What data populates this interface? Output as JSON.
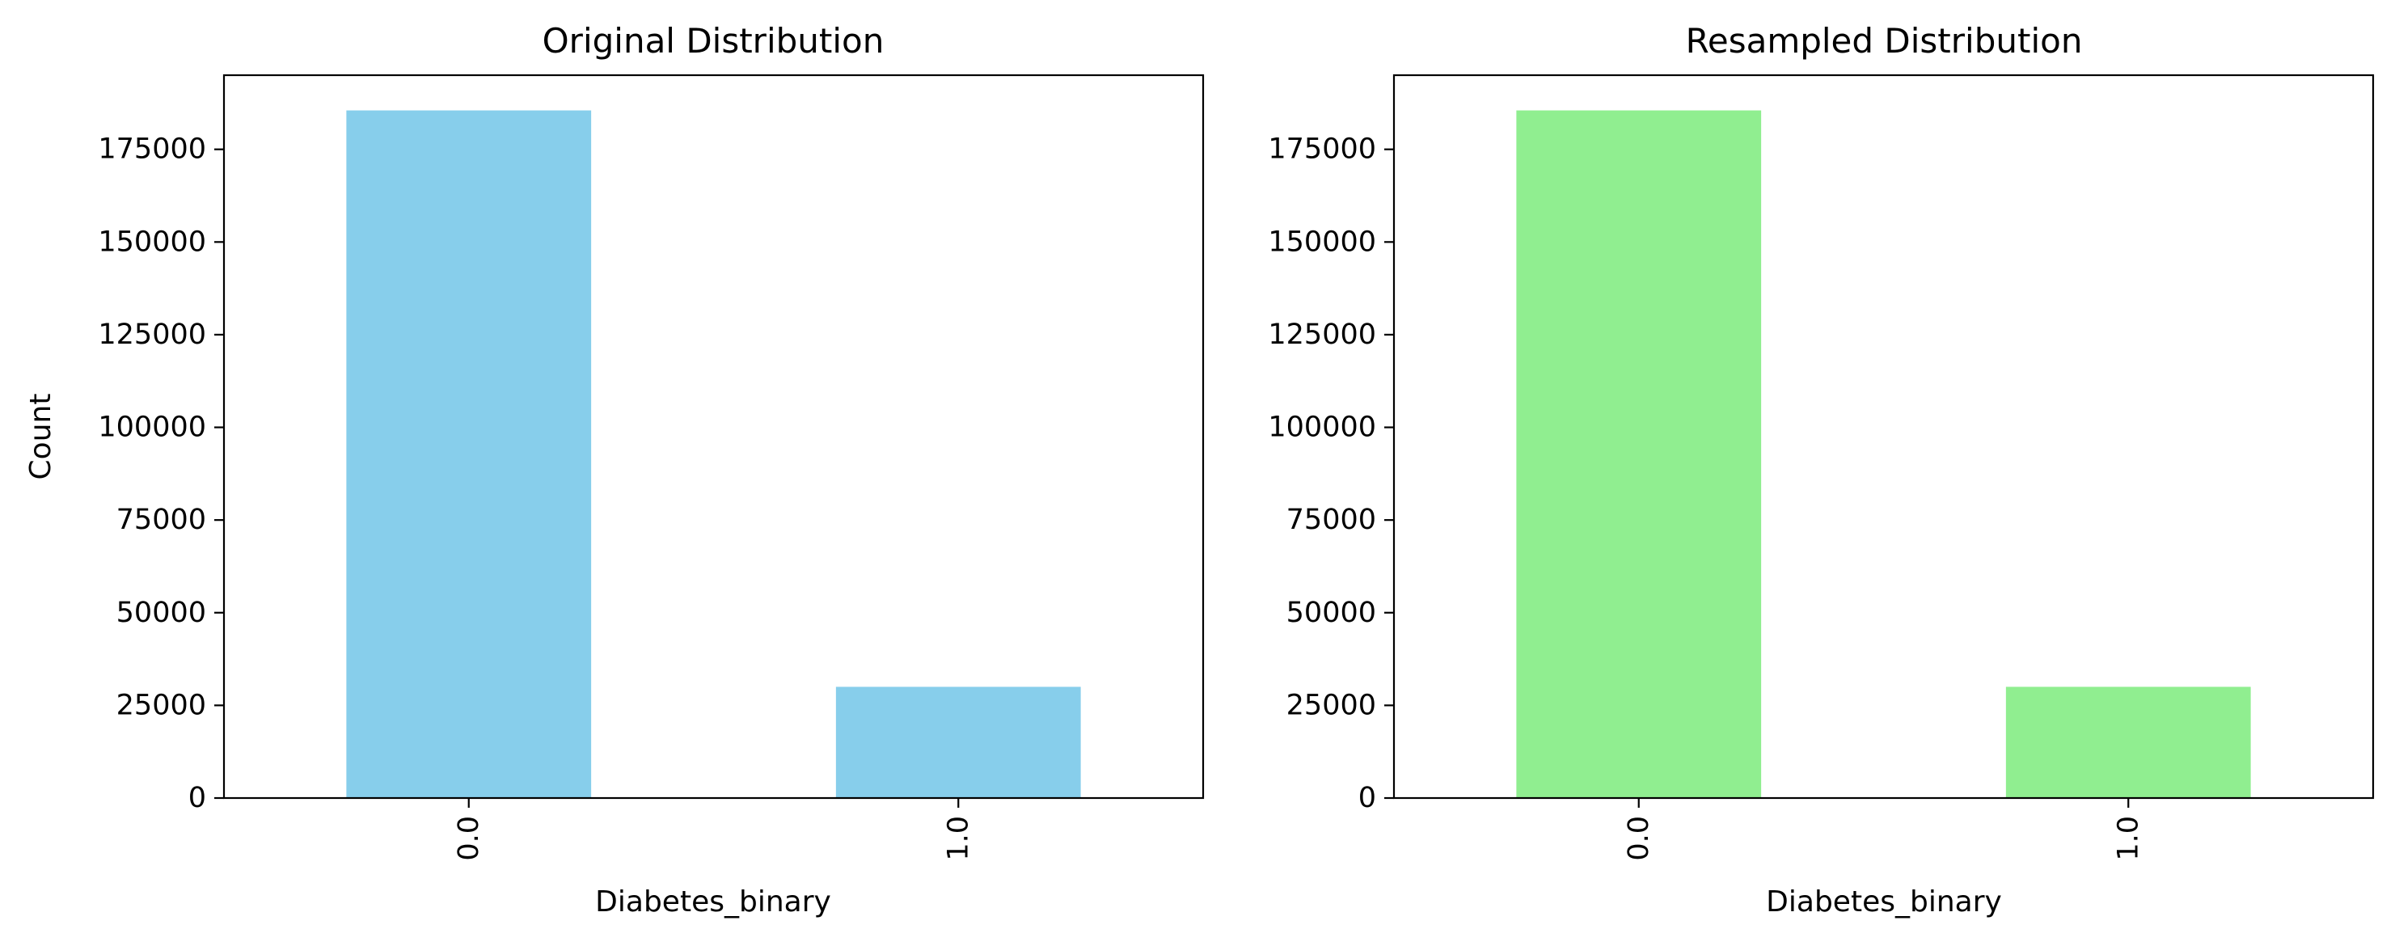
{
  "chart_data": [
    {
      "type": "bar",
      "title": "Original Distribution",
      "xlabel": "Diabetes_binary",
      "ylabel": "Count",
      "categories": [
        "0.0",
        "1.0"
      ],
      "values": [
        185500,
        30000
      ],
      "ylim": [
        0,
        195000
      ],
      "yticks": [
        0,
        25000,
        50000,
        75000,
        100000,
        125000,
        150000,
        175000
      ],
      "color": "#87CEEB",
      "grid": false
    },
    {
      "type": "bar",
      "title": "Resampled Distribution",
      "xlabel": "Diabetes_binary",
      "ylabel": "",
      "categories": [
        "0.0",
        "1.0"
      ],
      "values": [
        185500,
        30000
      ],
      "ylim": [
        0,
        195000
      ],
      "yticks": [
        0,
        25000,
        50000,
        75000,
        100000,
        125000,
        150000,
        175000
      ],
      "color": "#90EE90",
      "grid": false
    }
  ]
}
